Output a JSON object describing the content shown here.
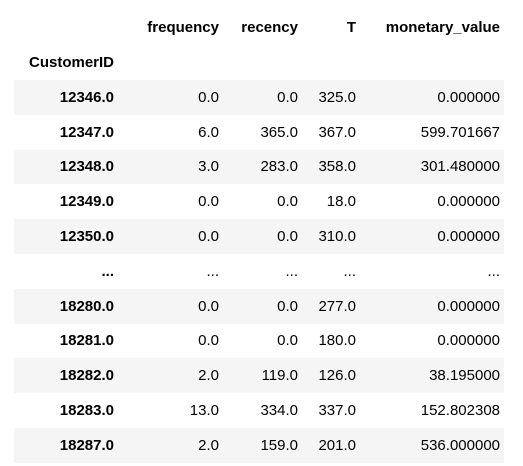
{
  "table": {
    "columns": [
      "frequency",
      "recency",
      "T",
      "monetary_value"
    ],
    "index_name": "CustomerID",
    "rows": [
      {
        "index": "12346.0",
        "values": [
          "0.0",
          "0.0",
          "325.0",
          "0.000000"
        ]
      },
      {
        "index": "12347.0",
        "values": [
          "6.0",
          "365.0",
          "367.0",
          "599.701667"
        ]
      },
      {
        "index": "12348.0",
        "values": [
          "3.0",
          "283.0",
          "358.0",
          "301.480000"
        ]
      },
      {
        "index": "12349.0",
        "values": [
          "0.0",
          "0.0",
          "18.0",
          "0.000000"
        ]
      },
      {
        "index": "12350.0",
        "values": [
          "0.0",
          "0.0",
          "310.0",
          "0.000000"
        ]
      },
      {
        "index": "...",
        "values": [
          "...",
          "...",
          "...",
          "..."
        ]
      },
      {
        "index": "18280.0",
        "values": [
          "0.0",
          "0.0",
          "277.0",
          "0.000000"
        ]
      },
      {
        "index": "18281.0",
        "values": [
          "0.0",
          "0.0",
          "180.0",
          "0.000000"
        ]
      },
      {
        "index": "18282.0",
        "values": [
          "2.0",
          "119.0",
          "126.0",
          "38.195000"
        ]
      },
      {
        "index": "18283.0",
        "values": [
          "13.0",
          "334.0",
          "337.0",
          "152.802308"
        ]
      },
      {
        "index": "18287.0",
        "values": [
          "2.0",
          "159.0",
          "201.0",
          "536.000000"
        ]
      }
    ]
  }
}
